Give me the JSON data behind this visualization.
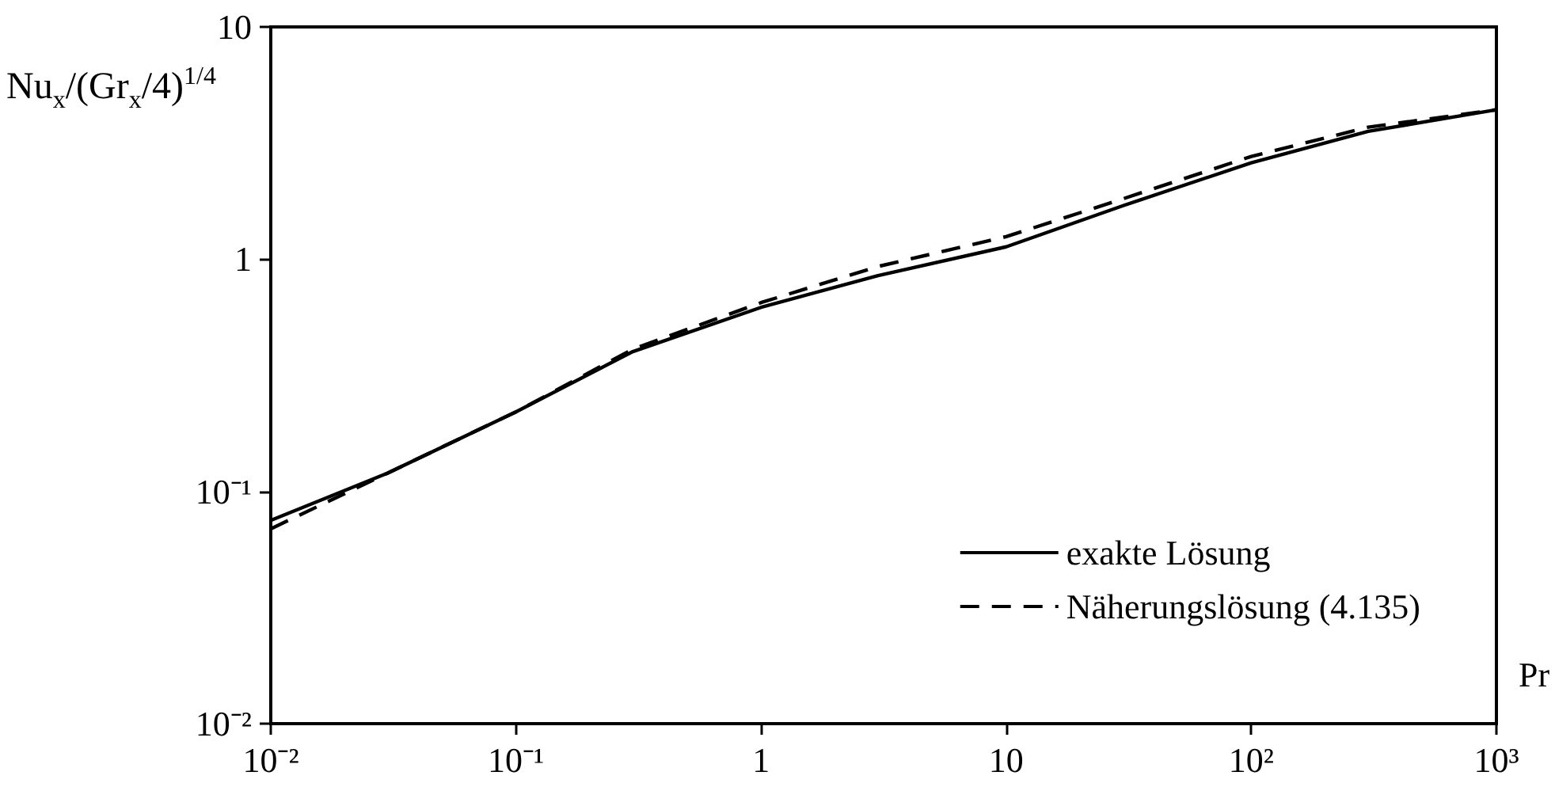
{
  "chart_data": {
    "type": "line",
    "xlabel": "Pr",
    "ylabel": "Nu$_{x}$/(Gr$_{x}$/4)$^{1/4}$",
    "x": [
      0.01,
      0.03,
      0.1,
      0.3,
      1,
      3,
      10,
      30,
      100,
      300,
      1000
    ],
    "series": [
      {
        "name": "exakte Lösung",
        "color": "#000000",
        "line_style": "solid",
        "values": [
          0.075,
          0.12,
          0.22,
          0.4,
          0.62,
          0.85,
          1.13,
          1.7,
          2.6,
          3.55,
          4.4
        ]
      },
      {
        "name": "Näherungslösung (4.135)",
        "color": "#000000",
        "line_style": "dashed",
        "values": [
          0.069,
          0.12,
          0.22,
          0.41,
          0.65,
          0.93,
          1.25,
          1.82,
          2.77,
          3.7,
          4.4
        ]
      }
    ],
    "log": "xy",
    "xlim": [
      0.01,
      1000
    ],
    "ylim": [
      0.01,
      10
    ],
    "xticks": [
      {
        "value": 0.01,
        "label": "10⁻²"
      },
      {
        "value": 0.1,
        "label": "10⁻¹"
      },
      1,
      10,
      {
        "value": 100,
        "label": "10²"
      },
      {
        "value": 1000,
        "label": "10³"
      }
    ],
    "yticks": [
      {
        "value": 0.01,
        "label": "10⁻²"
      },
      {
        "value": 0.1,
        "label": "10⁻¹"
      },
      1,
      10
    ],
    "grid": false,
    "marker": "none",
    "legend": "bottom right"
  }
}
